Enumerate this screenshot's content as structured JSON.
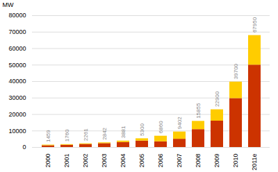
{
  "chart_data": {
    "type": "bar",
    "stacked": true,
    "grid": true,
    "categories": [
      "2000",
      "2001",
      "2002",
      "2003",
      "2004",
      "2005",
      "2006",
      "2007",
      "2008",
      "2009",
      "2010",
      "2011e"
    ],
    "series": [
      {
        "color": "#CC3300",
        "values": [
          1059,
          1360,
          1861,
          2342,
          3081,
          3900,
          3460,
          5002,
          10855,
          16000,
          29700,
          50000
        ]
      },
      {
        "color": "#FFCC00",
        "values": [
          400,
          400,
          400,
          500,
          800,
          1400,
          3400,
          4400,
          5000,
          6900,
          10000,
          17950
        ]
      }
    ],
    "totals": [
      1459,
      1760,
      2261,
      2842,
      3881,
      5300,
      6860,
      9402,
      15855,
      22900,
      39700,
      67950
    ],
    "ylabel": "MW",
    "ylim": [
      0,
      80000
    ],
    "yticks": [
      0,
      10000,
      20000,
      30000,
      40000,
      50000,
      60000,
      70000,
      80000
    ]
  }
}
